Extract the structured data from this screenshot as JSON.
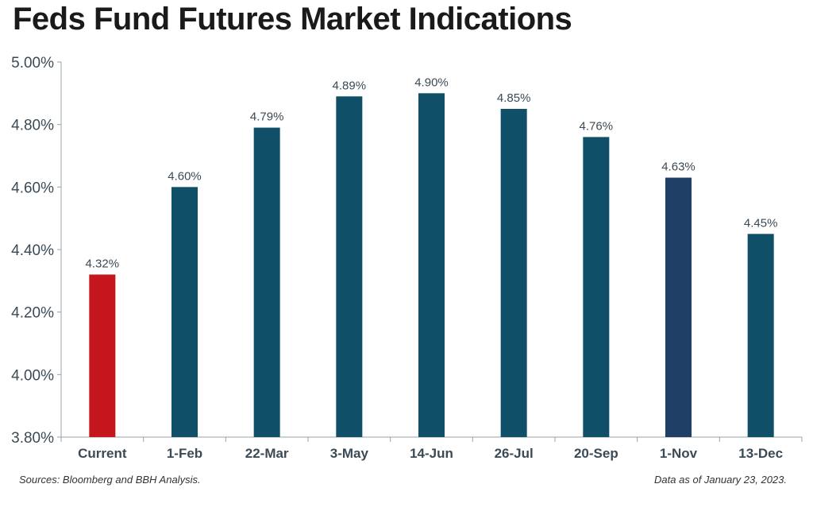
{
  "chart_data": {
    "type": "bar",
    "title": "Feds Fund Futures Market Indications",
    "categories": [
      "Current",
      "1-Feb",
      "22-Mar",
      "3-May",
      "14-Jun",
      "26-Jul",
      "20-Sep",
      "1-Nov",
      "13-Dec"
    ],
    "values": [
      4.32,
      4.6,
      4.79,
      4.89,
      4.9,
      4.85,
      4.76,
      4.63,
      4.45
    ],
    "data_labels": [
      "4.32%",
      "4.60%",
      "4.79%",
      "4.89%",
      "4.90%",
      "4.85%",
      "4.76%",
      "4.63%",
      "4.45%"
    ],
    "bar_colors": [
      "#c4161c",
      "#0f5068",
      "#0f5068",
      "#0f5068",
      "#0f5068",
      "#0f5068",
      "#0f5068",
      "#1f3f66",
      "#0f5068"
    ],
    "ylim": [
      3.8,
      5.0
    ],
    "yticks": [
      3.8,
      4.0,
      4.2,
      4.4,
      4.6,
      4.8,
      5.0
    ],
    "ytick_labels": [
      "3.80%",
      "4.00%",
      "4.20%",
      "4.40%",
      "4.60%",
      "4.80%",
      "5.00%"
    ],
    "xlabel": "",
    "ylabel": "",
    "grid": false,
    "legend": "none"
  },
  "footer": {
    "source": "Sources: Bloomberg and BBH Analysis.",
    "date_note": "Data as of January 23, 2023."
  }
}
